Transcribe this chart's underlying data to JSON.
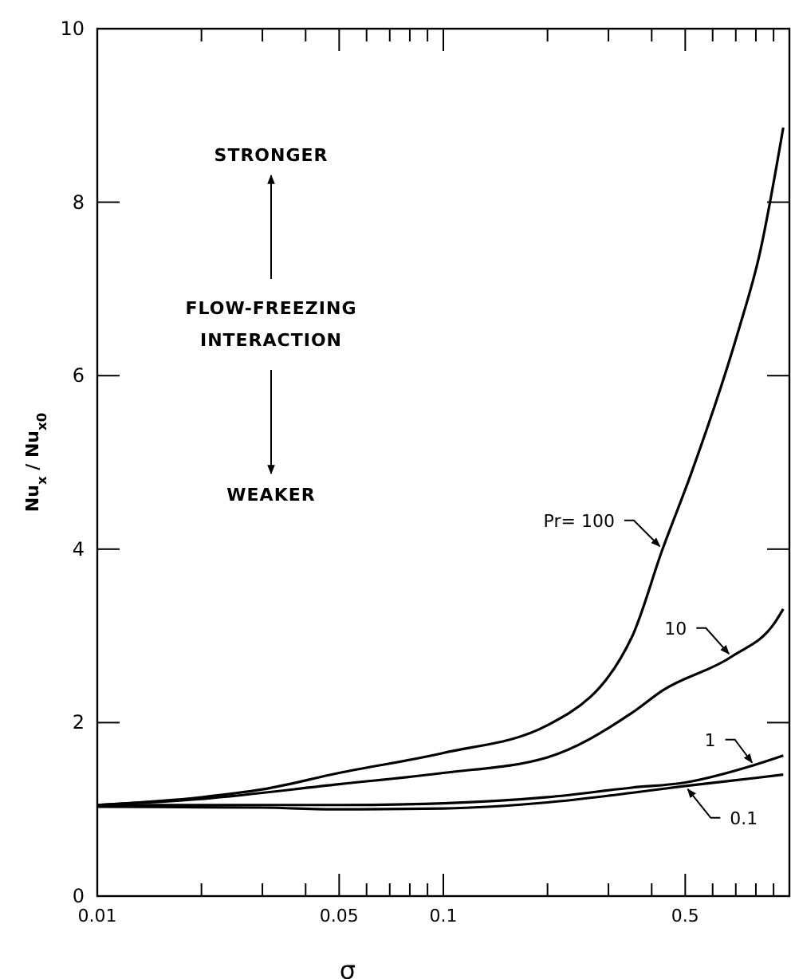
{
  "chart_data": {
    "type": "line",
    "xlabel": "σ",
    "ylabel": "Nu$_{x}$ / Nu$_{x0}$",
    "log": "x",
    "xlim": [
      0.01,
      1
    ],
    "ylim": [
      0,
      10
    ],
    "xticks": [
      0.01,
      {
        "value": 0.02,
        "label": null
      },
      {
        "value": 0.03,
        "label": null
      },
      {
        "value": 0.04,
        "label": null
      },
      0.05,
      {
        "value": 0.06,
        "label": null
      },
      {
        "value": 0.07,
        "label": null
      },
      {
        "value": 0.08,
        "label": null
      },
      {
        "value": 0.09,
        "label": null
      },
      0.1,
      {
        "value": 0.2,
        "label": null
      },
      {
        "value": 0.3,
        "label": null
      },
      {
        "value": 0.4,
        "label": null
      },
      0.5,
      {
        "value": 0.6,
        "label": null
      },
      {
        "value": 0.7,
        "label": null
      },
      {
        "value": 0.8,
        "label": null
      },
      {
        "value": 0.9,
        "label": null
      }
    ],
    "yticks": [
      0,
      2,
      4,
      6,
      8,
      10
    ],
    "grid": false,
    "legend": "right",
    "marker": "none",
    "line_style": "solid",
    "series": [
      {
        "name": "Pr= 100",
        "color": "#000000",
        "x": [
          0.01,
          0.02,
          0.03,
          0.05,
          0.1,
          0.2,
          0.35,
          0.43,
          0.52,
          0.71,
          0.82,
          0.96
        ],
        "values": [
          1.05,
          1.14,
          1.23,
          1.42,
          1.65,
          1.97,
          2.98,
          4.0,
          4.87,
          6.5,
          7.4,
          8.86
        ]
      },
      {
        "name": "10",
        "color": "#000000",
        "x": [
          0.01,
          0.02,
          0.05,
          0.1,
          0.2,
          0.35,
          0.43,
          0.68,
          0.91,
          0.96
        ],
        "values": [
          1.05,
          1.12,
          1.29,
          1.42,
          1.6,
          2.11,
          2.37,
          2.76,
          3.16,
          3.31
        ]
      },
      {
        "name": "1",
        "color": "#000000",
        "x": [
          0.01,
          0.05,
          0.1,
          0.2,
          0.35,
          0.5,
          0.79,
          0.96
        ],
        "values": [
          1.05,
          1.05,
          1.07,
          1.14,
          1.25,
          1.31,
          1.51,
          1.62
        ]
      },
      {
        "name": "0.1",
        "color": "#000000",
        "x": [
          0.01,
          0.03,
          0.05,
          0.1,
          0.2,
          0.35,
          0.5,
          0.79,
          0.96
        ],
        "values": [
          1.03,
          1.02,
          1.0,
          1.01,
          1.08,
          1.19,
          1.27,
          1.36,
          1.4
        ]
      }
    ],
    "annotations": [
      "STRONGER",
      "FLOW-FREEZING",
      "INTERACTION",
      "WEAKER"
    ]
  }
}
